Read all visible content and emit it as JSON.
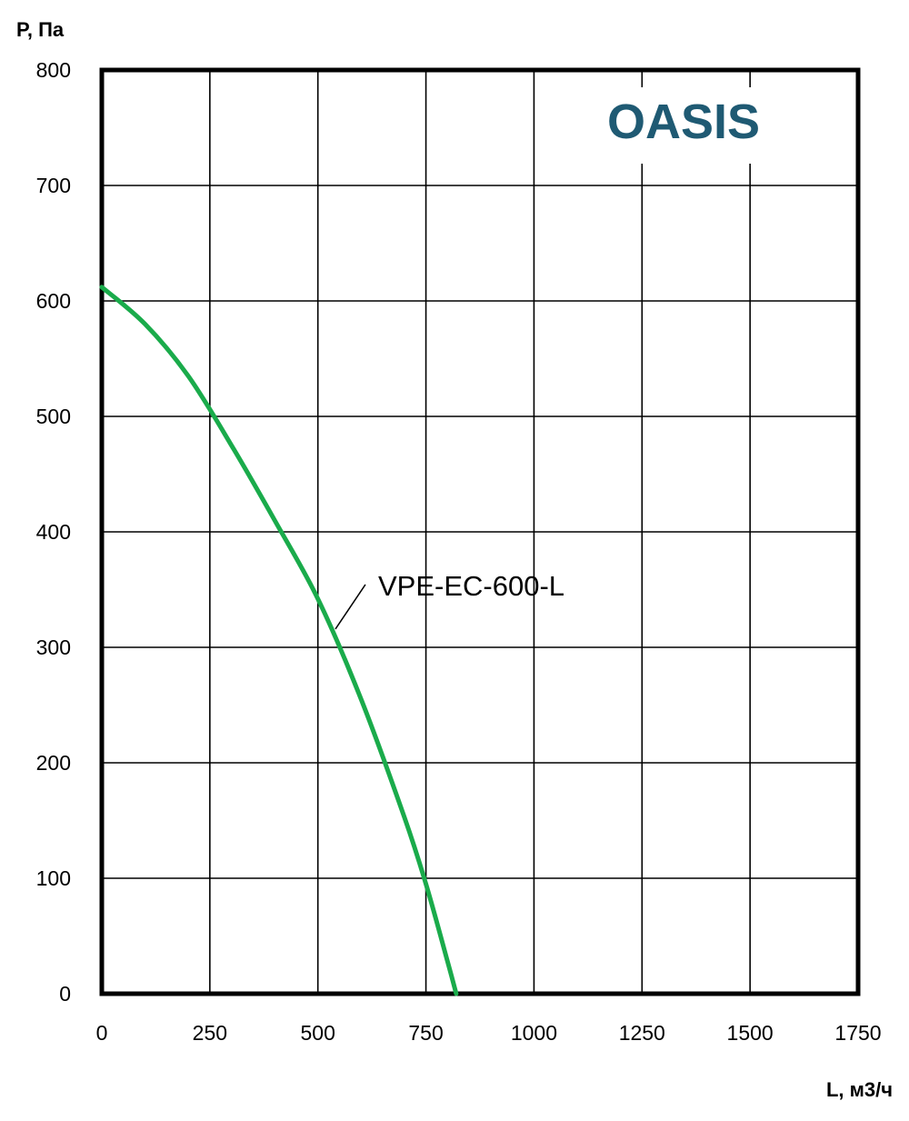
{
  "chart_data": {
    "type": "line",
    "xlabel": "L, м3/ч",
    "ylabel": "P, Па",
    "xlim": [
      0,
      1750
    ],
    "ylim": [
      0,
      800
    ],
    "x_ticks": [
      "0",
      "250",
      "500",
      "750",
      "1000",
      "1250",
      "1500",
      "1750"
    ],
    "y_ticks": [
      "0",
      "100",
      "200",
      "300",
      "400",
      "500",
      "600",
      "700",
      "800"
    ],
    "x_tick_values": [
      0,
      250,
      500,
      750,
      1000,
      1250,
      1500,
      1750
    ],
    "y_tick_values": [
      0,
      100,
      200,
      300,
      400,
      500,
      600,
      700,
      800
    ],
    "grid": true,
    "legend": "none",
    "series": [
      {
        "name": "VPE-EC-600-L",
        "color": "#1aab4b",
        "x": [
          0,
          100,
          200,
          300,
          400,
          500,
          600,
          700,
          750,
          800,
          820
        ],
        "y": [
          612,
          580,
          535,
          475,
          410,
          342,
          255,
          153,
          95,
          28,
          0
        ]
      }
    ],
    "annotations": [
      {
        "text": "VPE-EC-600-L",
        "x": 530,
        "y": 315
      }
    ]
  },
  "brand": {
    "logo_text": "OASIS",
    "color": "#1f5a73"
  }
}
